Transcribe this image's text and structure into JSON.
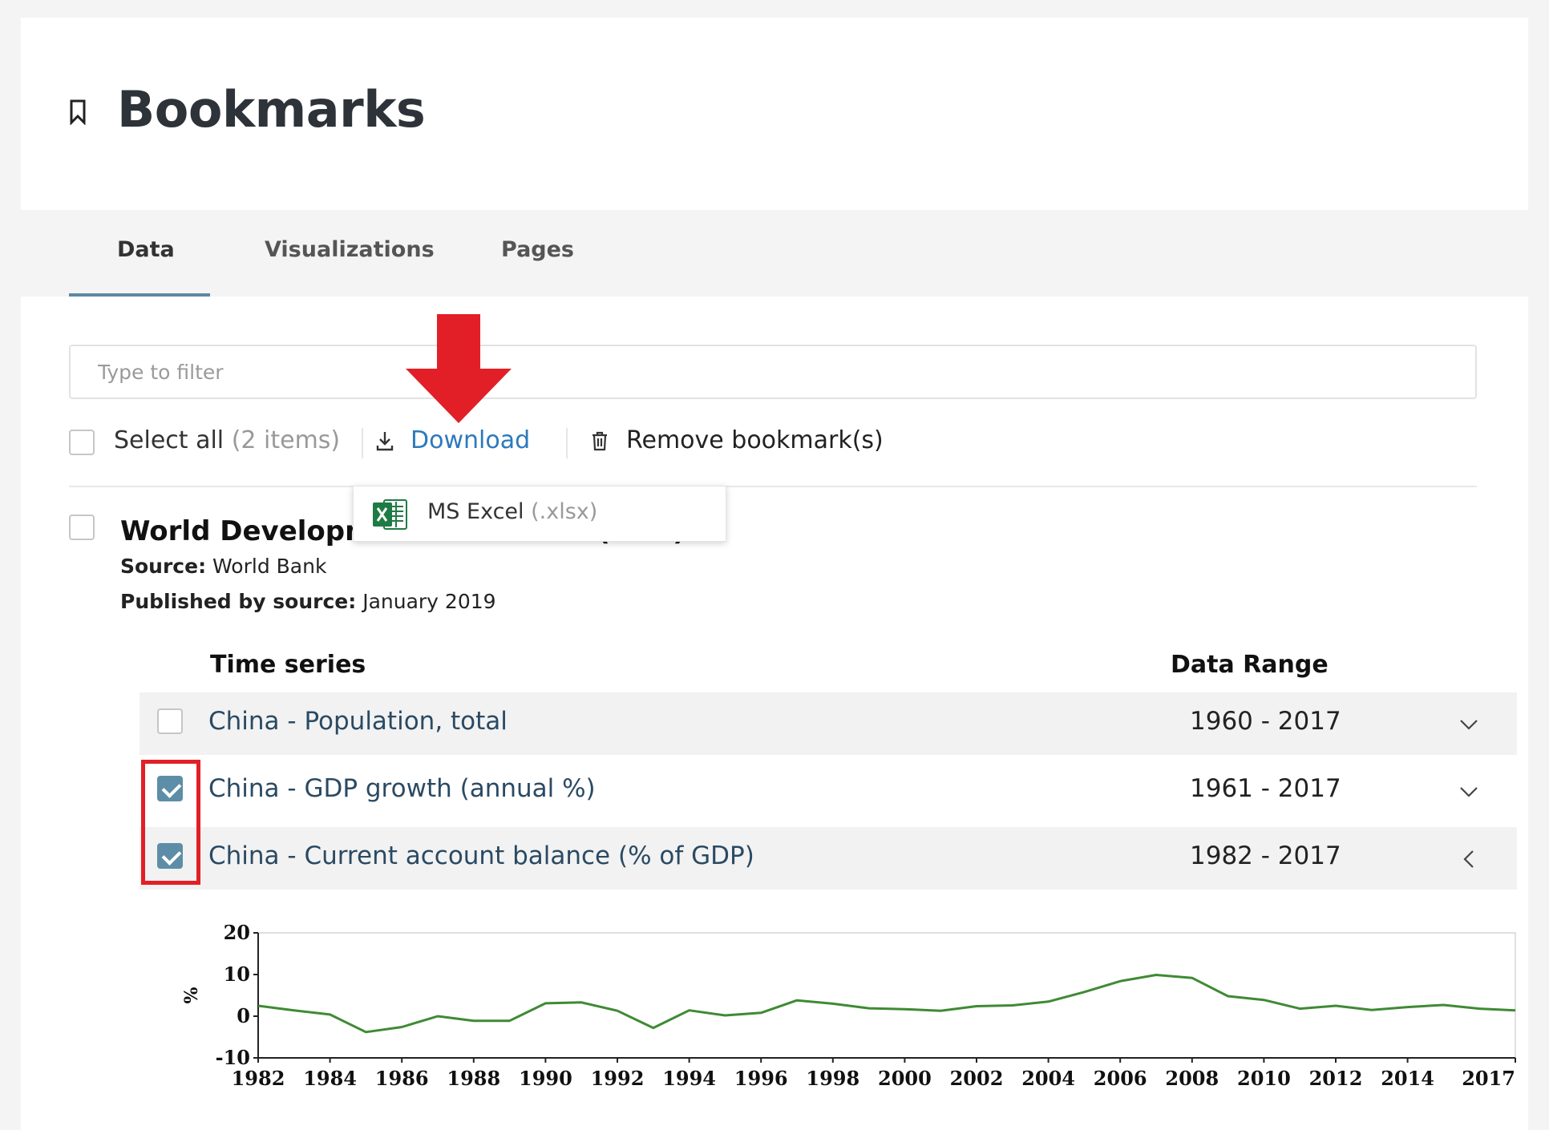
{
  "header": {
    "title": "Bookmarks",
    "icon": "bookmark-icon"
  },
  "tabs": [
    {
      "label": "Data",
      "active": true
    },
    {
      "label": "Visualizations",
      "active": false
    },
    {
      "label": "Pages",
      "active": false
    }
  ],
  "filter": {
    "placeholder": "Type to filter",
    "value": ""
  },
  "toolbar": {
    "select_all_label": "Select all",
    "item_count": "(2 items)",
    "download_label": "Download",
    "remove_label": "Remove bookmark(s)"
  },
  "download_menu": {
    "option_label": "MS Excel",
    "option_ext": "(.xlsx)",
    "option_icon": "excel-icon"
  },
  "dataset": {
    "title": "World Development Indicators (WDI)",
    "source_label": "Source:",
    "source": "World Bank",
    "published_label": "Published by source:",
    "published": "January 2019"
  },
  "table": {
    "col_series": "Time series",
    "col_range": "Data Range",
    "rows": [
      {
        "name": "China - Population, total",
        "range": "1960 - 2017",
        "checked": false,
        "expanded": false
      },
      {
        "name": "China - GDP growth (annual %)",
        "range": "1961 - 2017",
        "checked": true,
        "expanded": false
      },
      {
        "name": "China - Current account balance (% of GDP)",
        "range": "1982 - 2017",
        "checked": true,
        "expanded": true
      }
    ]
  },
  "colors": {
    "accent": "#5a8aa3",
    "link": "#2d79ba",
    "highlight": "#e21f26",
    "series_line": "#3f8a34"
  },
  "chart_data": {
    "type": "line",
    "ylabel": "%",
    "ylim": [
      -10,
      20
    ],
    "yticks": [
      "20",
      "10",
      "0",
      "-10"
    ],
    "xticks": [
      "1982",
      "1984",
      "1986",
      "1988",
      "1990",
      "1992",
      "1994",
      "1996",
      "1998",
      "2000",
      "2002",
      "2004",
      "2006",
      "2008",
      "2010",
      "2012",
      "2014",
      "2017"
    ],
    "x": [
      1982,
      1983,
      1984,
      1985,
      1986,
      1987,
      1988,
      1989,
      1990,
      1991,
      1992,
      1993,
      1994,
      1995,
      1996,
      1997,
      1998,
      1999,
      2000,
      2001,
      2002,
      2003,
      2004,
      2005,
      2006,
      2007,
      2008,
      2009,
      2010,
      2011,
      2012,
      2013,
      2014,
      2015,
      2016,
      2017
    ],
    "values": [
      2.5,
      1.4,
      0.4,
      -3.8,
      -2.6,
      0.0,
      -1.1,
      -1.1,
      3.1,
      3.3,
      1.3,
      -2.8,
      1.4,
      0.2,
      0.8,
      3.8,
      3.0,
      1.9,
      1.7,
      1.3,
      2.4,
      2.6,
      3.5,
      5.8,
      8.4,
      9.9,
      9.2,
      4.8,
      3.9,
      1.8,
      2.5,
      1.5,
      2.2,
      2.7,
      1.8,
      1.4
    ]
  }
}
